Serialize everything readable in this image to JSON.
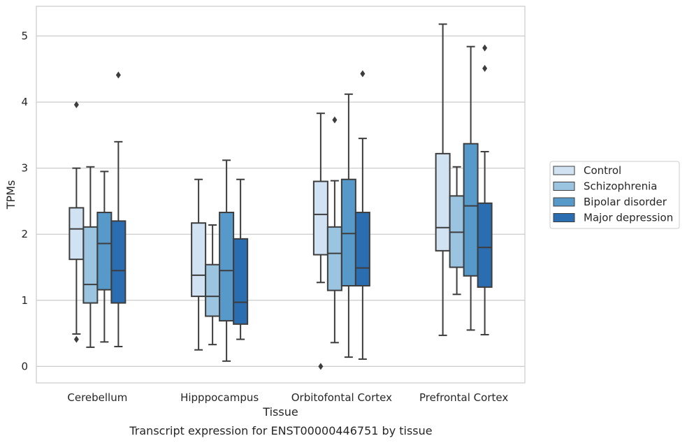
{
  "chart_data": {
    "type": "box",
    "title": "",
    "xlabel": "Tissue",
    "ylabel": "TPMs",
    "caption": "Transcript expression for ENST00000446751 by tissue",
    "ylim": [
      -0.25,
      5.45
    ],
    "yticks": [
      0,
      1,
      2,
      3,
      4,
      5
    ],
    "grid": "horizontal",
    "legend_position": "right",
    "categories": [
      "Cerebellum",
      "Hipppocampus",
      "Orbitofontal Cortex",
      "Prefrontal Cortex"
    ],
    "series": [
      {
        "name": "Control",
        "color": "#d1e2f2",
        "boxes": [
          {
            "whisker_low": 0.49,
            "q1": 1.62,
            "median": 2.08,
            "q3": 2.4,
            "whisker_high": 3.0,
            "outliers": [
              0.41,
              3.96
            ]
          },
          {
            "whisker_low": 0.25,
            "q1": 1.06,
            "median": 1.38,
            "q3": 2.17,
            "whisker_high": 2.83,
            "outliers": []
          },
          {
            "whisker_low": 1.27,
            "q1": 1.69,
            "median": 2.3,
            "q3": 2.8,
            "whisker_high": 3.83,
            "outliers": [
              0.0
            ]
          },
          {
            "whisker_low": 0.47,
            "q1": 1.75,
            "median": 2.1,
            "q3": 3.22,
            "whisker_high": 5.18,
            "outliers": []
          }
        ]
      },
      {
        "name": "Schizophrenia",
        "color": "#9ac4e0",
        "boxes": [
          {
            "whisker_low": 0.29,
            "q1": 0.96,
            "median": 1.24,
            "q3": 2.11,
            "whisker_high": 3.02,
            "outliers": []
          },
          {
            "whisker_low": 0.33,
            "q1": 0.76,
            "median": 1.06,
            "q3": 1.54,
            "whisker_high": 2.14,
            "outliers": []
          },
          {
            "whisker_low": 0.36,
            "q1": 1.15,
            "median": 1.71,
            "q3": 2.11,
            "whisker_high": 2.81,
            "outliers": [
              3.73
            ]
          },
          {
            "whisker_low": 1.09,
            "q1": 1.5,
            "median": 2.03,
            "q3": 2.58,
            "whisker_high": 3.02,
            "outliers": []
          }
        ]
      },
      {
        "name": "Bipolar disorder",
        "color": "#5799c9",
        "boxes": [
          {
            "whisker_low": 0.37,
            "q1": 1.16,
            "median": 1.86,
            "q3": 2.33,
            "whisker_high": 2.95,
            "outliers": []
          },
          {
            "whisker_low": 0.08,
            "q1": 0.69,
            "median": 1.45,
            "q3": 2.33,
            "whisker_high": 3.12,
            "outliers": []
          },
          {
            "whisker_low": 0.14,
            "q1": 1.22,
            "median": 2.01,
            "q3": 2.83,
            "whisker_high": 4.12,
            "outliers": []
          },
          {
            "whisker_low": 0.55,
            "q1": 1.37,
            "median": 2.43,
            "q3": 3.37,
            "whisker_high": 4.84,
            "outliers": []
          }
        ]
      },
      {
        "name": "Major depression",
        "color": "#2a6db0",
        "boxes": [
          {
            "whisker_low": 0.3,
            "q1": 0.96,
            "median": 1.45,
            "q3": 2.2,
            "whisker_high": 3.4,
            "outliers": [
              4.41
            ]
          },
          {
            "whisker_low": 0.41,
            "q1": 0.64,
            "median": 0.97,
            "q3": 1.93,
            "whisker_high": 2.83,
            "outliers": []
          },
          {
            "whisker_low": 0.11,
            "q1": 1.22,
            "median": 1.49,
            "q3": 2.33,
            "whisker_high": 3.45,
            "outliers": [
              4.43
            ]
          },
          {
            "whisker_low": 0.48,
            "q1": 1.2,
            "median": 1.8,
            "q3": 2.47,
            "whisker_high": 3.25,
            "outliers": [
              4.51,
              4.82
            ]
          }
        ]
      }
    ]
  }
}
